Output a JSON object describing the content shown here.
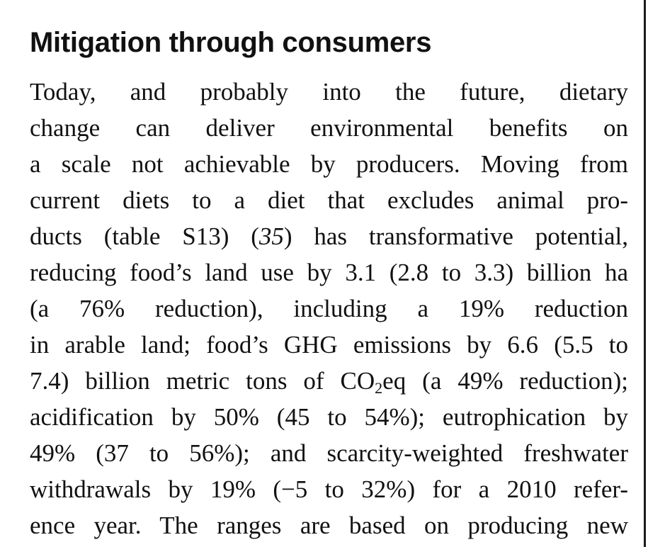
{
  "article": {
    "heading": "Mitigation through consumers",
    "lines": [
      "Today, and probably into the future, dietary",
      "change can deliver environmental benefits on",
      "a scale not achievable by producers. Moving from",
      "current diets to a diet that excludes animal pro-",
      "ducts (table S13) (",
      "35",
      ") has transformative potential,",
      "reducing food’s land use by 3.1 (2.8 to 3.3) billion ha",
      "(a 76% reduction), including a 19% reduction",
      "in arable land; food’s GHG emissions by 6.6 (5.5 to",
      "7.4) billion metric tons of CO",
      "2",
      "eq (a 49% reduction);",
      "acidification by 50% (45 to 54%); eutrophication by",
      "49% (37 to 56%); and scarcity-weighted freshwater",
      "withdrawals by 19% (−5 to 32%) for a 2010 refer-",
      "ence year. The ranges are based on producing new"
    ]
  }
}
